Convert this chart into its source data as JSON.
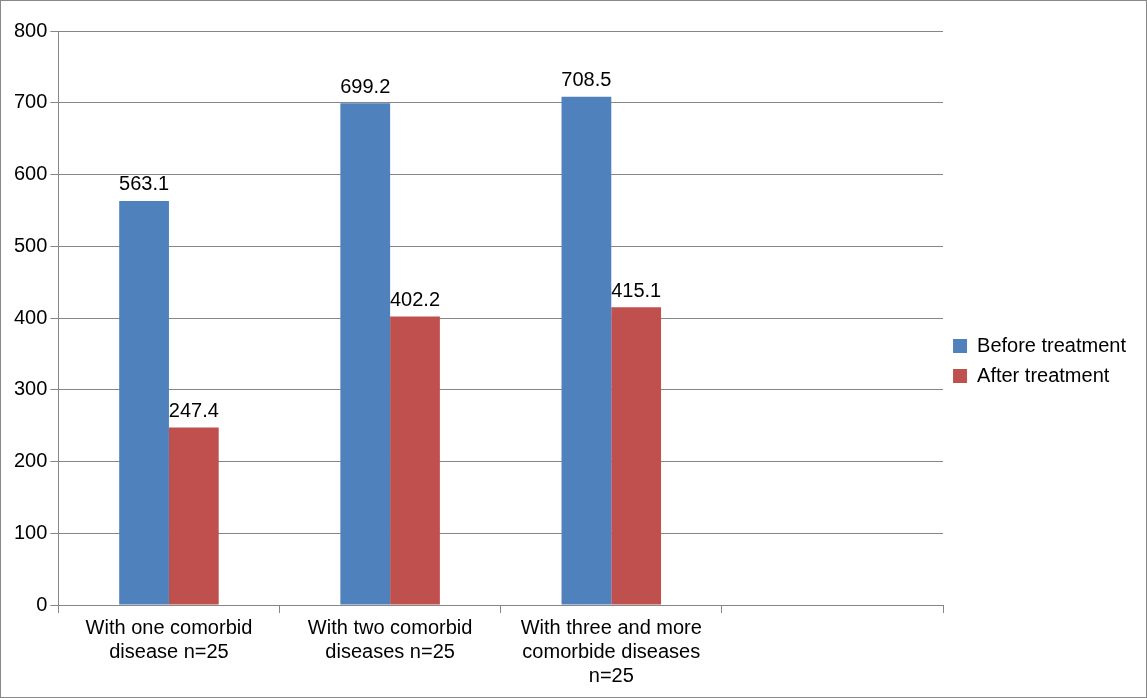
{
  "chart_data": {
    "type": "bar",
    "categories": [
      "With one comorbid disease n=25",
      "With two comorbid diseases n=25",
      "With three and more comorbide diseases n=25",
      null
    ],
    "series": [
      {
        "name": "Before treatment",
        "color": "#4f81bd",
        "values": [
          563.1,
          699.2,
          708.5,
          null
        ]
      },
      {
        "name": "After treatment",
        "color": "#c0504d",
        "values": [
          247.4,
          402.2,
          415.1,
          null
        ]
      }
    ],
    "ylim": [
      0,
      800
    ],
    "yticks": [
      0,
      100,
      200,
      300,
      400,
      500,
      600,
      700,
      800
    ],
    "grid": "y",
    "legend": "right",
    "data_labels": true
  }
}
